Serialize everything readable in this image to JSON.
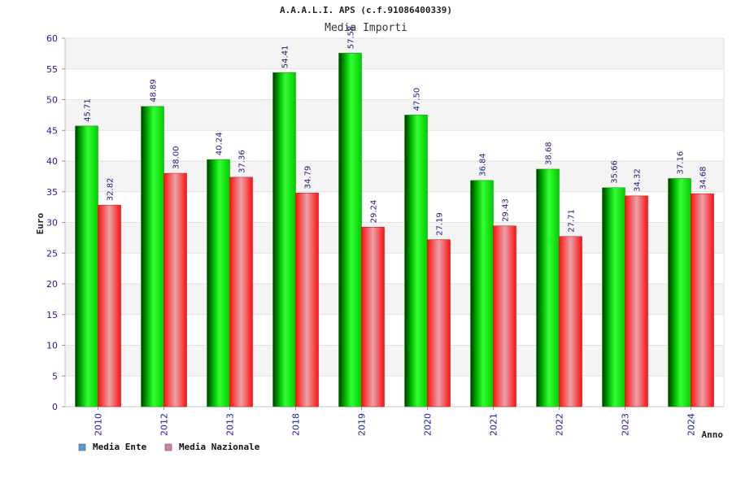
{
  "chart_data": {
    "type": "bar",
    "title": "A.A.A.L.I. APS (c.f.91086400339)",
    "subtitle": "Media Importi",
    "xlabel": "Anno",
    "ylabel": "Euro",
    "categories": [
      "2010",
      "2012",
      "2013",
      "2018",
      "2019",
      "2020",
      "2021",
      "2022",
      "2023",
      "2024"
    ],
    "series": [
      {
        "name": "Media Ente",
        "values": [
          45.71,
          48.89,
          40.24,
          54.41,
          57.58,
          47.5,
          36.84,
          38.68,
          35.66,
          37.16
        ],
        "labels": [
          "45.71",
          "48.89",
          "40.24",
          "54.41",
          "57.58",
          "47.50",
          "36.84",
          "38.68",
          "35.66",
          "37.16"
        ],
        "color": "#00c000",
        "legend_color": "#5b9bd5"
      },
      {
        "name": "Media Nazionale",
        "values": [
          32.82,
          38.0,
          37.36,
          34.79,
          29.24,
          27.19,
          29.43,
          27.71,
          34.32,
          34.68
        ],
        "labels": [
          "32.82",
          "38.00",
          "37.36",
          "34.79",
          "29.24",
          "27.19",
          "29.43",
          "27.71",
          "34.32",
          "34.68"
        ],
        "color": "#ff1a1a",
        "legend_color": "#e07aa8"
      }
    ],
    "ylim": [
      0,
      60
    ],
    "yticks": [
      "0",
      "5",
      "10",
      "15",
      "20",
      "25",
      "30",
      "35",
      "40",
      "45",
      "50",
      "55",
      "60"
    ],
    "grid": true,
    "grid_bands": [
      "#ffffff",
      "#f4f4f4"
    ],
    "legend_position": "bottom-left"
  }
}
